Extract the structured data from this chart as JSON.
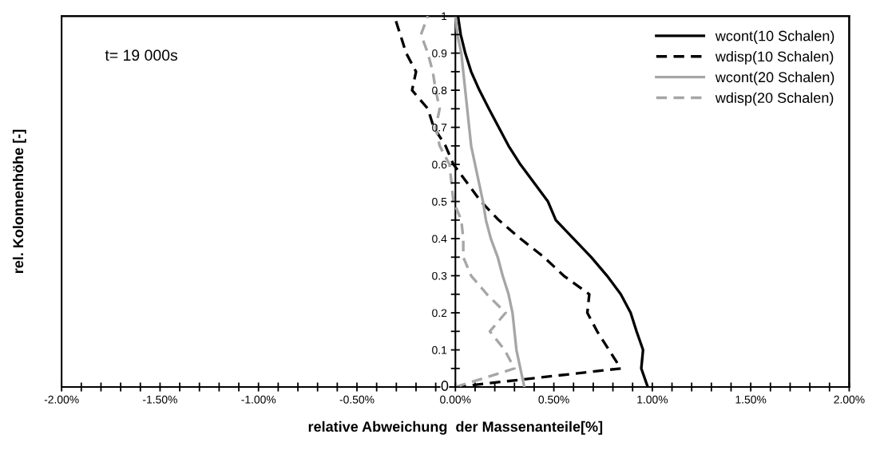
{
  "chart_data": {
    "type": "line",
    "xlabel": "relative Abweichung  der Massenanteile[%]",
    "ylabel": "rel. Kolonnenhöhe [-]",
    "annotations": [
      "t= 19 000s"
    ],
    "legend": "top right",
    "grid": false,
    "marker": "none",
    "xlim": [
      -2,
      2
    ],
    "ylim": [
      0,
      1
    ],
    "xticks": [
      {
        "value": -2,
        "label": "-2.00%"
      },
      {
        "value": -1.9,
        "label": null
      },
      {
        "value": -1.8,
        "label": null
      },
      {
        "value": -1.7,
        "label": null
      },
      {
        "value": -1.6,
        "label": null
      },
      {
        "value": -1.5,
        "label": "-1.50%"
      },
      {
        "value": -1.4,
        "label": null
      },
      {
        "value": -1.3,
        "label": null
      },
      {
        "value": -1.2,
        "label": null
      },
      {
        "value": -1.1,
        "label": null
      },
      {
        "value": -1,
        "label": "-1.00%"
      },
      {
        "value": -0.9,
        "label": null
      },
      {
        "value": -0.8,
        "label": null
      },
      {
        "value": -0.7,
        "label": null
      },
      {
        "value": -0.6,
        "label": null
      },
      {
        "value": -0.5,
        "label": "-0.50%"
      },
      {
        "value": -0.4,
        "label": null
      },
      {
        "value": -0.3,
        "label": null
      },
      {
        "value": -0.2,
        "label": null
      },
      {
        "value": -0.1,
        "label": null
      },
      {
        "value": 0,
        "label": "0.00%"
      },
      {
        "value": 0.1,
        "label": null
      },
      {
        "value": 0.2,
        "label": null
      },
      {
        "value": 0.3,
        "label": null
      },
      {
        "value": 0.4,
        "label": null
      },
      {
        "value": 0.5,
        "label": "0.50%"
      },
      {
        "value": 0.6,
        "label": null
      },
      {
        "value": 0.7,
        "label": null
      },
      {
        "value": 0.8,
        "label": null
      },
      {
        "value": 0.9,
        "label": null
      },
      {
        "value": 1,
        "label": "1.00%"
      },
      {
        "value": 1.1,
        "label": null
      },
      {
        "value": 1.2,
        "label": null
      },
      {
        "value": 1.3,
        "label": null
      },
      {
        "value": 1.4,
        "label": null
      },
      {
        "value": 1.5,
        "label": "1.50%"
      },
      {
        "value": 1.6,
        "label": null
      },
      {
        "value": 1.7,
        "label": null
      },
      {
        "value": 1.8,
        "label": null
      },
      {
        "value": 1.9,
        "label": null
      },
      {
        "value": 2,
        "label": "2.00%"
      }
    ],
    "yticks": [
      0,
      {
        "value": 0.05,
        "label": null
      },
      0.1,
      {
        "value": 0.15,
        "label": null
      },
      0.2,
      {
        "value": 0.25,
        "label": null
      },
      0.3,
      {
        "value": 0.35,
        "label": null
      },
      0.4,
      {
        "value": 0.45,
        "label": null
      },
      0.5,
      {
        "value": 0.55,
        "label": null
      },
      0.6,
      {
        "value": 0.65,
        "label": null
      },
      0.7,
      {
        "value": 0.75,
        "label": null
      },
      0.8,
      {
        "value": 0.85,
        "label": null
      },
      0.9,
      {
        "value": 0.95,
        "label": null
      },
      1
    ],
    "series": [
      {
        "name": "wcont(10 Schalen)",
        "color": "#000000",
        "line_style": "solid",
        "x": [
          0.977,
          0.944,
          0.953,
          0.92,
          0.89,
          0.84,
          0.77,
          0.69,
          0.6,
          0.51,
          0.47,
          0.4,
          0.33,
          0.27,
          0.22,
          0.17,
          0.122,
          0.08,
          0.05,
          0.027,
          0.013
        ],
        "values": [
          0,
          0.05,
          0.1,
          0.15,
          0.2,
          0.25,
          0.3,
          0.35,
          0.4,
          0.45,
          0.5,
          0.55,
          0.6,
          0.65,
          0.7,
          0.75,
          0.8,
          0.85,
          0.9,
          0.95,
          1
        ]
      },
      {
        "name": "wdisp(10 Schalen)",
        "color": "#000000",
        "line_style": "dashed",
        "x": [
          0,
          0.84,
          0.78,
          0.72,
          0.67,
          0.68,
          0.55,
          0.45,
          0.33,
          0.22,
          0.13,
          0.06,
          -0.01,
          -0.05,
          -0.11,
          -0.14,
          -0.22,
          -0.2,
          -0.25,
          -0.28,
          -0.31
        ],
        "values": [
          0,
          0.05,
          0.1,
          0.15,
          0.2,
          0.25,
          0.3,
          0.35,
          0.4,
          0.45,
          0.5,
          0.55,
          0.6,
          0.65,
          0.7,
          0.75,
          0.8,
          0.85,
          0.9,
          0.95,
          1
        ]
      },
      {
        "name": "wcont(20 Schalen)",
        "color": "#a6a6a6",
        "line_style": "solid",
        "x": [
          0.35,
          0.33,
          0.31,
          0.3,
          0.29,
          0.27,
          0.24,
          0.215,
          0.18,
          0.155,
          0.14,
          0.12,
          0.1,
          0.08,
          0.07,
          0.06,
          0.05,
          0.04,
          0.03,
          0.01,
          0
        ],
        "values": [
          0,
          0.05,
          0.1,
          0.15,
          0.2,
          0.25,
          0.3,
          0.35,
          0.4,
          0.45,
          0.5,
          0.55,
          0.6,
          0.65,
          0.7,
          0.75,
          0.8,
          0.85,
          0.9,
          0.95,
          1
        ]
      },
      {
        "name": "wdisp(20 Schalen)",
        "color": "#a6a6a6",
        "line_style": "dashed",
        "x": [
          0,
          0.3,
          0.25,
          0.175,
          0.255,
          0.16,
          0.08,
          0.04,
          0.04,
          0.03,
          -0.01,
          -0.02,
          -0.03,
          -0.08,
          -0.1,
          -0.08,
          -0.1,
          -0.115,
          -0.14,
          -0.175,
          -0.14
        ],
        "values": [
          0,
          0.05,
          0.1,
          0.15,
          0.2,
          0.25,
          0.3,
          0.35,
          0.4,
          0.45,
          0.5,
          0.55,
          0.6,
          0.65,
          0.7,
          0.75,
          0.8,
          0.85,
          0.9,
          0.95,
          1
        ]
      }
    ]
  }
}
